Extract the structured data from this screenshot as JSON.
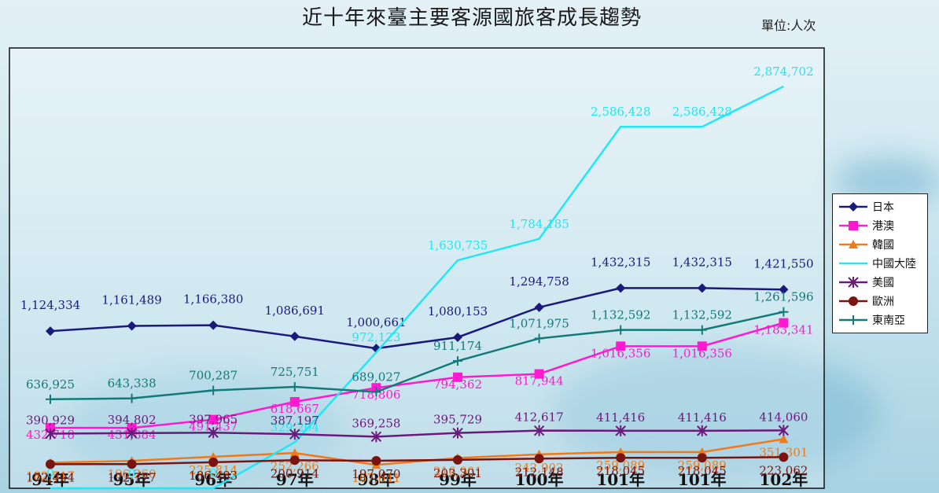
{
  "header": {
    "title": "近十年來臺主要客源國旅客成長趨勢",
    "unit": "單位:人次"
  },
  "chart_data": {
    "type": "line",
    "title": "近十年來臺主要客源國旅客成長趨勢",
    "xlabel": "",
    "ylabel": "",
    "ylim": [
      0,
      3150000
    ],
    "grid": false,
    "legend_position": "right",
    "categories": [
      "94年",
      "95年",
      "96年",
      "97年",
      "98年",
      "99年",
      "100年",
      "101年",
      "101年",
      "102年"
    ],
    "series": [
      {
        "name": "日本",
        "color": "#1a1a7a",
        "marker": "diamond",
        "values": [
          1124334,
          1161489,
          1166380,
          1086691,
          1000661,
          1080153,
          1294758,
          1432315,
          1432315,
          1421550
        ],
        "labels": [
          "1,124,334",
          "1,161,489",
          "1,166,380",
          "1,086,691",
          "1,000,661",
          "1,080,153",
          "1,294,758",
          "1,432,315",
          "1,432,315",
          "1,421,550"
        ]
      },
      {
        "name": "港澳",
        "color": "#ff19d0",
        "marker": "square",
        "values": [
          432718,
          431884,
          491437,
          618667,
          718806,
          794362,
          817944,
          1016356,
          1016356,
          1183341
        ],
        "labels": [
          "432,718",
          "431,884",
          "491,437",
          "618,667",
          "718,806",
          "794,362",
          "817,944",
          "1,016,356",
          "1,016,356",
          "1,183,341"
        ]
      },
      {
        "name": "韓國",
        "color": "#f07a1a",
        "marker": "triangle",
        "values": [
          182517,
          196260,
          225814,
          252266,
          167641,
          216901,
          242902,
          259089,
          259089,
          351301
        ],
        "labels": [
          "182,517",
          "196,260",
          "225,814",
          "252,266",
          "167,641",
          "216,901",
          "242,902",
          "259,089",
          "259,089",
          "351,301"
        ]
      },
      {
        "name": "中國大陸",
        "color": "#22e6f2",
        "marker": "none",
        "values": [
          0,
          0,
          0,
          329204,
          972123,
          1630735,
          1784185,
          2586428,
          2586428,
          2874702
        ],
        "labels": [
          "0",
          "0",
          "0",
          "329,204",
          "972,123",
          "1,630,735",
          "1,784,185",
          "2,586,428",
          "2,586,428",
          "2,874,702"
        ]
      },
      {
        "name": "美國",
        "color": "#6a1a7a",
        "marker": "star",
        "values": [
          390929,
          394802,
          397965,
          387197,
          369258,
          395729,
          412617,
          411416,
          411416,
          414060
        ],
        "labels": [
          "390,929",
          "394,802",
          "397,965",
          "387,197",
          "369,258",
          "395,729",
          "412,617",
          "411,416",
          "411,416",
          "414,060"
        ]
      },
      {
        "name": "歐洲",
        "color": "#7a1410",
        "marker": "circle",
        "values": [
          172494,
          172777,
          186483,
          200914,
          197070,
          203301,
          212148,
          218045,
          218045,
          223062
        ],
        "labels": [
          "172,494",
          "172,777",
          "186,483",
          "200,914",
          "197,070",
          "203,301",
          "212,148",
          "218,045",
          "218,045",
          "223,062"
        ]
      },
      {
        "name": "東南亞",
        "color": "#127a78",
        "marker": "plus",
        "values": [
          636925,
          643338,
          700287,
          725751,
          689027,
          911174,
          1071975,
          1132592,
          1132592,
          1261596
        ],
        "labels": [
          "636,925",
          "643,338",
          "700,287",
          "725,751",
          "689,027",
          "911,174",
          "1,071,975",
          "1,132,592",
          "1,132,592",
          "1,261,596"
        ]
      }
    ]
  }
}
